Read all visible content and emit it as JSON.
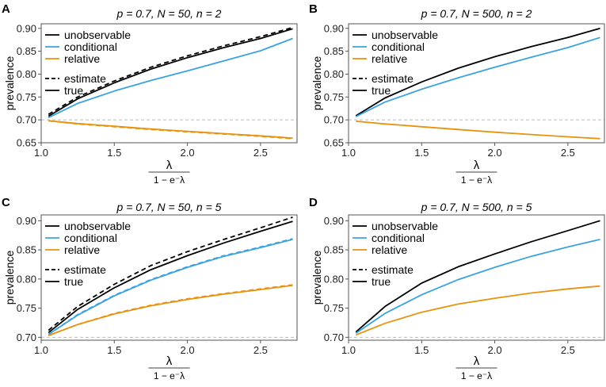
{
  "colors": {
    "unobservable": "#000000",
    "conditional": "#3AA3DF",
    "relative": "#E8920E",
    "reference": "#bbbbbb"
  },
  "x_axis_label": {
    "numerator": "λ",
    "denominator": "1 − e⁻λ"
  },
  "chart_data": [
    {
      "panel_label": "A",
      "type": "line",
      "title": "p = 0.7, N = 50, n = 2",
      "ylabel": "prevalence",
      "xlim": [
        1.0,
        2.75
      ],
      "ylim": [
        0.65,
        0.91
      ],
      "xticks": [
        "1.0",
        "1.5",
        "2.0",
        "2.5"
      ],
      "yticks": [
        "0.65",
        "0.70",
        "0.75",
        "0.80",
        "0.85",
        "0.90"
      ],
      "reference_line": 0.7,
      "legend": {
        "series": [
          "unobservable",
          "conditional",
          "relative"
        ],
        "linetypes": [
          "estimate",
          "true"
        ]
      },
      "x": [
        1.05,
        1.25,
        1.5,
        1.75,
        2.0,
        2.25,
        2.5,
        2.72
      ],
      "series": [
        {
          "name": "unobservable",
          "kind": "true",
          "values": [
            0.708,
            0.746,
            0.781,
            0.811,
            0.836,
            0.858,
            0.878,
            0.899
          ]
        },
        {
          "name": "unobservable",
          "kind": "estimate",
          "values": [
            0.712,
            0.75,
            0.785,
            0.815,
            0.84,
            0.862,
            0.882,
            0.902
          ]
        },
        {
          "name": "conditional",
          "kind": "true",
          "values": [
            0.705,
            0.736,
            0.763,
            0.786,
            0.807,
            0.829,
            0.851,
            0.878
          ]
        },
        {
          "name": "relative",
          "kind": "true",
          "values": [
            0.698,
            0.692,
            0.686,
            0.68,
            0.675,
            0.67,
            0.665,
            0.66
          ]
        },
        {
          "name": "relative",
          "kind": "estimate",
          "values": [
            0.698,
            0.691,
            0.685,
            0.679,
            0.674,
            0.669,
            0.664,
            0.659
          ]
        }
      ]
    },
    {
      "panel_label": "B",
      "type": "line",
      "title": "p = 0.7, N = 500, n = 2",
      "ylabel": "prevalence",
      "xlim": [
        1.0,
        2.75
      ],
      "ylim": [
        0.65,
        0.91
      ],
      "xticks": [
        "1.0",
        "1.5",
        "2.0",
        "2.5"
      ],
      "yticks": [
        "0.65",
        "0.70",
        "0.75",
        "0.80",
        "0.85",
        "0.90"
      ],
      "reference_line": 0.7,
      "legend": {
        "series": [
          "unobservable",
          "conditional",
          "relative"
        ],
        "linetypes": [
          "estimate",
          "true"
        ]
      },
      "x": [
        1.05,
        1.25,
        1.5,
        1.75,
        2.0,
        2.25,
        2.5,
        2.72
      ],
      "series": [
        {
          "name": "unobservable",
          "kind": "true",
          "values": [
            0.709,
            0.748,
            0.783,
            0.813,
            0.838,
            0.86,
            0.88,
            0.9
          ]
        },
        {
          "name": "conditional",
          "kind": "true",
          "values": [
            0.707,
            0.739,
            0.767,
            0.792,
            0.815,
            0.837,
            0.858,
            0.88
          ]
        },
        {
          "name": "relative",
          "kind": "true",
          "values": [
            0.697,
            0.691,
            0.685,
            0.679,
            0.673,
            0.668,
            0.663,
            0.659
          ]
        }
      ]
    },
    {
      "panel_label": "C",
      "type": "line",
      "title": "p = 0.7, N = 50, n = 5",
      "ylabel": "prevalence",
      "xlim": [
        1.0,
        2.75
      ],
      "ylim": [
        0.695,
        0.91
      ],
      "xticks": [
        "1.0",
        "1.5",
        "2.0",
        "2.5"
      ],
      "yticks": [
        "0.70",
        "0.75",
        "0.80",
        "0.85",
        "0.90"
      ],
      "reference_line": 0.7,
      "legend": {
        "series": [
          "unobservable",
          "conditional",
          "relative"
        ],
        "linetypes": [
          "estimate",
          "true"
        ]
      },
      "x": [
        1.05,
        1.25,
        1.5,
        1.75,
        2.0,
        2.25,
        2.5,
        2.72
      ],
      "series": [
        {
          "name": "unobservable",
          "kind": "true",
          "values": [
            0.708,
            0.748,
            0.785,
            0.816,
            0.84,
            0.862,
            0.882,
            0.899
          ]
        },
        {
          "name": "unobservable",
          "kind": "estimate",
          "values": [
            0.712,
            0.753,
            0.791,
            0.823,
            0.847,
            0.868,
            0.888,
            0.906
          ]
        },
        {
          "name": "conditional",
          "kind": "true",
          "values": [
            0.705,
            0.738,
            0.771,
            0.798,
            0.82,
            0.839,
            0.854,
            0.868
          ]
        },
        {
          "name": "conditional",
          "kind": "estimate",
          "values": [
            0.705,
            0.739,
            0.772,
            0.799,
            0.821,
            0.84,
            0.855,
            0.869
          ]
        },
        {
          "name": "relative",
          "kind": "true",
          "values": [
            0.703,
            0.722,
            0.74,
            0.754,
            0.765,
            0.774,
            0.782,
            0.789
          ]
        },
        {
          "name": "relative",
          "kind": "estimate",
          "values": [
            0.703,
            0.722,
            0.741,
            0.755,
            0.766,
            0.775,
            0.783,
            0.79
          ]
        }
      ]
    },
    {
      "panel_label": "D",
      "type": "line",
      "title": "p = 0.7, N = 500, n = 5",
      "ylabel": "prevalence",
      "xlim": [
        1.0,
        2.75
      ],
      "ylim": [
        0.695,
        0.91
      ],
      "xticks": [
        "1.0",
        "1.5",
        "2.0",
        "2.5"
      ],
      "yticks": [
        "0.70",
        "0.75",
        "0.80",
        "0.85",
        "0.90"
      ],
      "reference_line": 0.7,
      "legend": {
        "series": [
          "unobservable",
          "conditional",
          "relative"
        ],
        "linetypes": [
          "estimate",
          "true"
        ]
      },
      "x": [
        1.05,
        1.25,
        1.5,
        1.75,
        2.0,
        2.25,
        2.5,
        2.72
      ],
      "series": [
        {
          "name": "unobservable",
          "kind": "true",
          "values": [
            0.709,
            0.753,
            0.793,
            0.821,
            0.843,
            0.864,
            0.883,
            0.9
          ]
        },
        {
          "name": "conditional",
          "kind": "true",
          "values": [
            0.707,
            0.741,
            0.773,
            0.799,
            0.82,
            0.839,
            0.855,
            0.868
          ]
        },
        {
          "name": "relative",
          "kind": "true",
          "values": [
            0.704,
            0.724,
            0.743,
            0.757,
            0.767,
            0.776,
            0.783,
            0.788
          ]
        }
      ]
    }
  ]
}
